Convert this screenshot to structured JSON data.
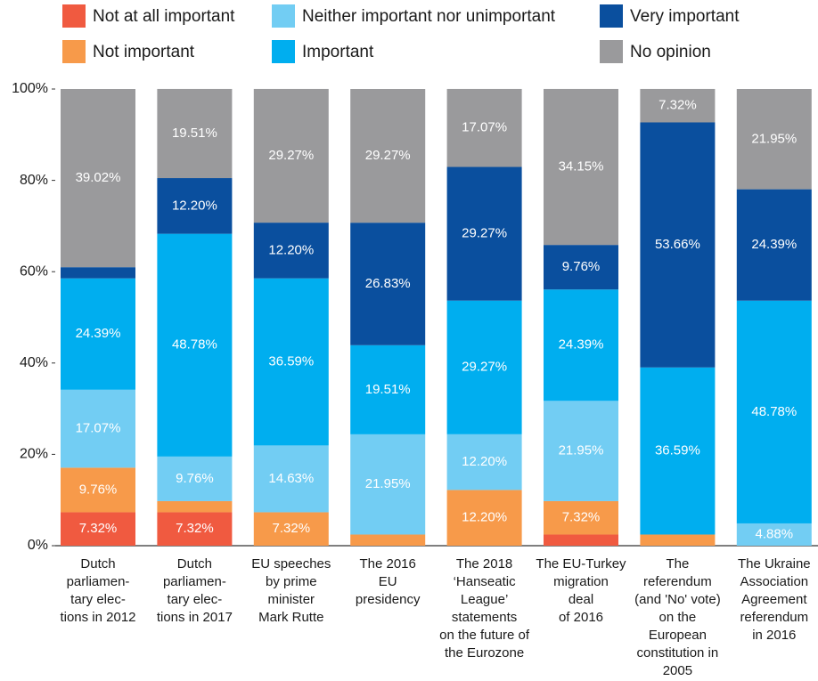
{
  "chart_data": {
    "type": "stacked_bar",
    "categories": [
      "Dutch\nparliamen-\ntary elec-\ntions in 2012",
      "Dutch\nparliamen-\ntary elec-\ntions in 2017",
      "EU speeches\nby prime\nminister\nMark Rutte",
      "The 2016\nEU\npresidency",
      "The 2018\n‘Hanseatic\nLeague’\nstatements\non the future of\nthe Eurozone",
      "The EU-Turkey\nmigration\ndeal\nof 2016",
      "The\nreferendum\n(and 'No' vote)\non the\nEuropean\nconstitution in\n2005",
      "The Ukraine\nAssociation\nAgreement\nreferendum\nin 2016"
    ],
    "series": [
      {
        "name": "Not at all important",
        "color": "#f05a40",
        "values": [
          7.32,
          7.32,
          0,
          0,
          0,
          2.44,
          0,
          0
        ],
        "value_labels": [
          "7.32%",
          "7.32%",
          null,
          null,
          null,
          null,
          null,
          null
        ]
      },
      {
        "name": "Not important",
        "color": "#f79a4a",
        "values": [
          9.76,
          2.44,
          7.32,
          2.44,
          12.2,
          7.32,
          2.44,
          0
        ],
        "value_labels": [
          "9.76%",
          null,
          "7.32%",
          null,
          "12.20%",
          "7.32%",
          null,
          null
        ]
      },
      {
        "name": "Neither important nor unimportant",
        "color": "#72cdf3",
        "values": [
          17.07,
          9.76,
          14.63,
          21.95,
          12.2,
          21.95,
          0,
          4.88
        ],
        "value_labels": [
          "17.07%",
          "9.76%",
          "14.63%",
          "21.95%",
          "12.20%",
          "21.95%",
          null,
          "4.88%"
        ]
      },
      {
        "name": "Important",
        "color": "#00aeef",
        "values": [
          24.39,
          48.78,
          36.59,
          19.51,
          29.27,
          24.39,
          36.59,
          48.78
        ],
        "value_labels": [
          "24.39%",
          "48.78%",
          "36.59%",
          "19.51%",
          "29.27%",
          "24.39%",
          "36.59%",
          "48.78%"
        ]
      },
      {
        "name": "Very important",
        "color": "#0a4f9e",
        "values": [
          2.44,
          12.2,
          12.2,
          26.83,
          29.27,
          9.76,
          53.66,
          24.39
        ],
        "value_labels": [
          null,
          "12.20%",
          "12.20%",
          "26.83%",
          "29.27%",
          "9.76%",
          "53.66%",
          "24.39%"
        ]
      },
      {
        "name": "No opinion",
        "color": "#9a9a9c",
        "values": [
          39.02,
          19.51,
          29.27,
          29.27,
          17.07,
          34.15,
          7.32,
          21.95
        ],
        "value_labels": [
          "39.02%",
          "19.51%",
          "29.27%",
          "29.27%",
          "17.07%",
          "34.15%",
          "7.32%",
          "21.95%"
        ]
      }
    ],
    "ylim": [
      0,
      100
    ],
    "yticks": [
      {
        "value": 0,
        "label": "0%"
      },
      {
        "value": 20,
        "label": "20%"
      },
      {
        "value": 40,
        "label": "40%"
      },
      {
        "value": 60,
        "label": "60%"
      },
      {
        "value": 80,
        "label": "80%"
      },
      {
        "value": 100,
        "label": "100%"
      }
    ],
    "legend": "top"
  }
}
